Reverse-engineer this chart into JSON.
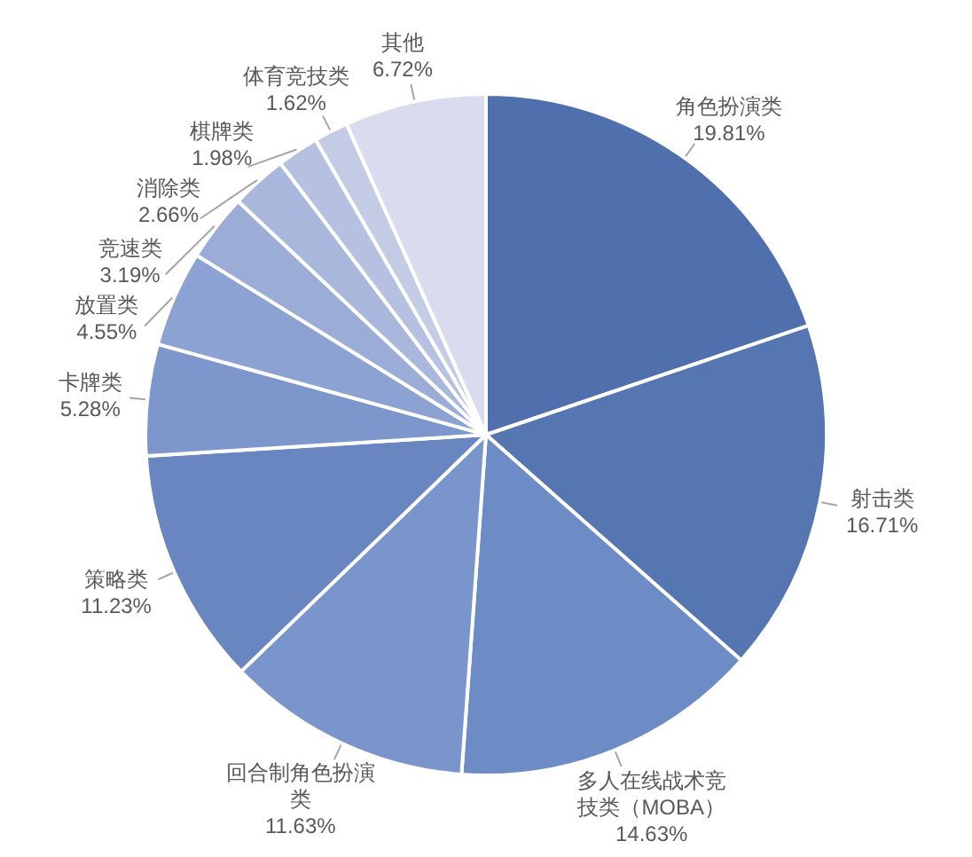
{
  "chart_data": {
    "type": "pie",
    "categories": [
      "角色扮演类",
      "射击类",
      "多人在线战术竞技类（MOBA）",
      "回合制角色扮演类",
      "策略类",
      "卡牌类",
      "放置类",
      "竞速类",
      "消除类",
      "棋牌类",
      "体育竞技类",
      "其他"
    ],
    "values": [
      19.81,
      16.71,
      14.63,
      11.63,
      11.23,
      5.28,
      4.55,
      3.19,
      2.66,
      1.98,
      1.62,
      6.72
    ],
    "value_labels": [
      "19.81%",
      "16.71%",
      "14.63%",
      "11.63%",
      "11.23%",
      "5.28%",
      "4.55%",
      "3.19%",
      "2.66%",
      "1.98%",
      "1.62%",
      "6.72%"
    ],
    "colors": [
      "#4f6fad",
      "#5676b2",
      "#6d8bc4",
      "#7995cb",
      "#6a86c1",
      "#7d97cc",
      "#8ba2d2",
      "#9badd7",
      "#a9b7dc",
      "#b6c0e0",
      "#c3cbe5",
      "#d8dcee"
    ]
  }
}
